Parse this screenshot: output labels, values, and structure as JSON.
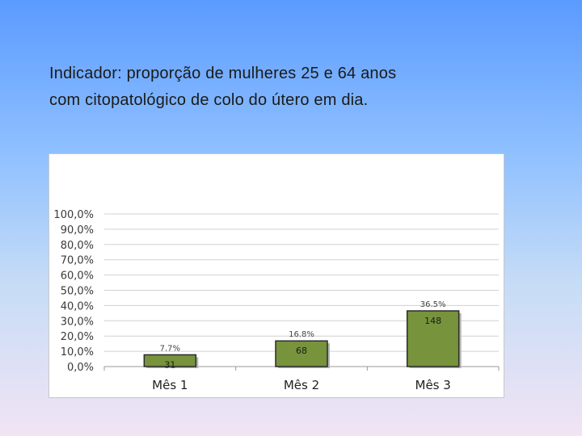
{
  "slide": {
    "title_line1": "Indicador: proporção de mulheres 25 e 64 anos",
    "title_line2": "com  citopatológico  de  colo  do útero  em dia."
  },
  "chart_data": {
    "type": "bar",
    "categories": [
      "Mês 1",
      "Mês 2",
      "Mês 3"
    ],
    "values": [
      7.7,
      16.8,
      36.5
    ],
    "data_labels": [
      "7.7%",
      "16.8%",
      "36.5%"
    ],
    "count_labels": [
      "31",
      "68",
      "148"
    ],
    "yticks": [
      "0,0%",
      "10,0%",
      "20,0%",
      "30,0%",
      "40,0%",
      "50,0%",
      "60,0%",
      "70,0%",
      "80,0%",
      "90,0%",
      "100,0%"
    ],
    "ylim": [
      0,
      100
    ],
    "grid": true,
    "bar_color": "#77933c",
    "bar_edge_color": "#2b2b2b",
    "title": "",
    "xlabel": "",
    "ylabel": ""
  }
}
